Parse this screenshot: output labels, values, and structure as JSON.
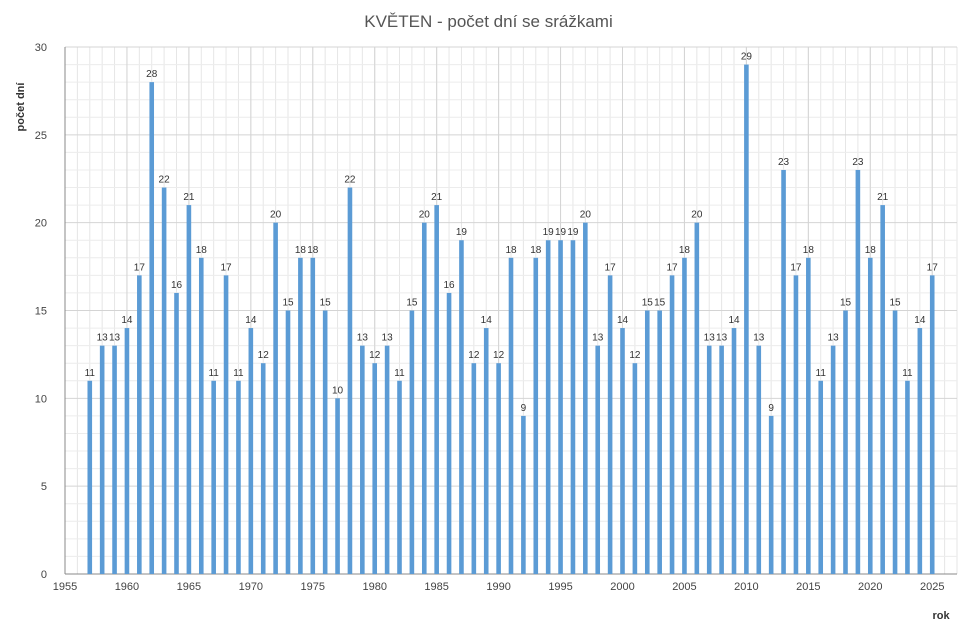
{
  "chart_data": {
    "type": "bar",
    "title": "KVĚTEN - počet dní se srážkami",
    "xlabel": "rok",
    "ylabel": "počet dní",
    "xlim": [
      1955,
      2027
    ],
    "ylim": [
      0,
      30
    ],
    "x_ticks": [
      1955,
      1960,
      1965,
      1970,
      1975,
      1980,
      1985,
      1990,
      1995,
      2000,
      2005,
      2010,
      2015,
      2020,
      2025
    ],
    "y_ticks": [
      0,
      5,
      10,
      15,
      20,
      25,
      30
    ],
    "grid": true,
    "bar_color": "#5b9bd5",
    "x": [
      1957,
      1958,
      1959,
      1960,
      1961,
      1962,
      1963,
      1964,
      1965,
      1966,
      1967,
      1968,
      1969,
      1970,
      1971,
      1972,
      1973,
      1974,
      1975,
      1976,
      1977,
      1978,
      1979,
      1980,
      1981,
      1982,
      1983,
      1984,
      1985,
      1986,
      1987,
      1988,
      1989,
      1990,
      1991,
      1992,
      1993,
      1994,
      1995,
      1996,
      1997,
      1998,
      1999,
      2000,
      2001,
      2002,
      2003,
      2004,
      2005,
      2006,
      2007,
      2008,
      2009,
      2010,
      2011,
      2012,
      2013,
      2014,
      2015,
      2016,
      2017,
      2018,
      2019,
      2020,
      2021,
      2022,
      2023,
      2024,
      2025
    ],
    "values": [
      11,
      13,
      13,
      14,
      17,
      28,
      22,
      16,
      21,
      18,
      11,
      17,
      11,
      14,
      12,
      20,
      15,
      18,
      18,
      15,
      10,
      22,
      13,
      12,
      13,
      11,
      15,
      20,
      21,
      16,
      19,
      12,
      14,
      12,
      18,
      9,
      18,
      19,
      19,
      19,
      20,
      13,
      17,
      14,
      12,
      15,
      15,
      17,
      18,
      20,
      13,
      13,
      14,
      29,
      13,
      9,
      23,
      17,
      18,
      11,
      13,
      15,
      23,
      18,
      21,
      15,
      11,
      14,
      17
    ]
  }
}
